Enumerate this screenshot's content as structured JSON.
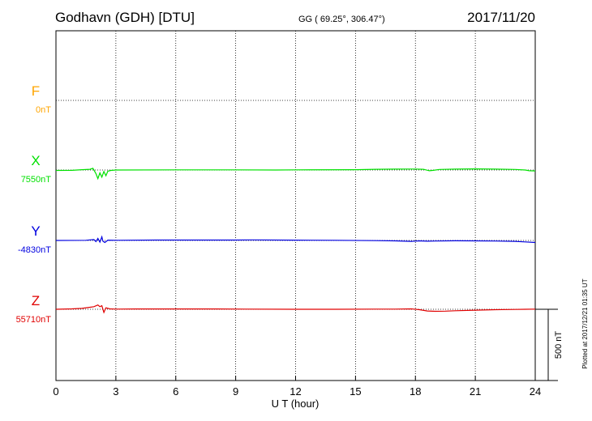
{
  "header": {
    "station": "Godhavn (GDH)  [DTU]",
    "coords": "GG ( 69.25°, 306.47°)",
    "date": "2017/11/20"
  },
  "side_note": "Plotted at 2017/12/21 01:35 UT",
  "scale_label": "500 nT",
  "chart_data": {
    "type": "line",
    "xlabel": "U T (hour)",
    "xlim": [
      0,
      24
    ],
    "xticks": [
      0,
      3,
      6,
      9,
      12,
      15,
      18,
      21,
      24
    ],
    "grid": true,
    "scale_bar_nT": 500,
    "series": [
      {
        "key": "F",
        "name": "F",
        "baseline_label": "0nT",
        "color": "#ffa500",
        "values": []
      },
      {
        "key": "X",
        "name": "X",
        "baseline_label": "7550nT",
        "color": "#00e000",
        "values": [
          [
            0,
            -3
          ],
          [
            0.8,
            -2
          ],
          [
            1.3,
            2
          ],
          [
            1.7,
            5
          ],
          [
            1.85,
            12
          ],
          [
            2.0,
            -25
          ],
          [
            2.1,
            -60
          ],
          [
            2.2,
            -20
          ],
          [
            2.3,
            -50
          ],
          [
            2.4,
            -10
          ],
          [
            2.5,
            -40
          ],
          [
            2.6,
            -8
          ],
          [
            2.75,
            -3
          ],
          [
            3.0,
            0
          ],
          [
            6,
            1
          ],
          [
            9,
            1
          ],
          [
            11,
            0
          ],
          [
            12,
            1
          ],
          [
            15,
            2
          ],
          [
            16,
            5
          ],
          [
            17,
            6
          ],
          [
            18,
            7
          ],
          [
            18.4,
            5
          ],
          [
            18.7,
            -5
          ],
          [
            18.9,
            -2
          ],
          [
            19.2,
            4
          ],
          [
            20,
            6
          ],
          [
            21,
            8
          ],
          [
            22,
            6
          ],
          [
            23,
            4
          ],
          [
            23.5,
            0
          ],
          [
            23.7,
            -5
          ],
          [
            24,
            -6
          ]
        ]
      },
      {
        "key": "Y",
        "name": "Y",
        "baseline_label": "-4830nT",
        "color": "#0000e0",
        "values": [
          [
            0,
            0
          ],
          [
            1.5,
            1
          ],
          [
            1.9,
            6
          ],
          [
            2.0,
            -8
          ],
          [
            2.1,
            14
          ],
          [
            2.2,
            -12
          ],
          [
            2.3,
            25
          ],
          [
            2.35,
            -5
          ],
          [
            2.45,
            -14
          ],
          [
            2.6,
            2
          ],
          [
            3.0,
            1
          ],
          [
            5,
            3
          ],
          [
            7,
            3
          ],
          [
            9,
            3
          ],
          [
            9.8,
            4
          ],
          [
            12,
            2
          ],
          [
            14,
            1
          ],
          [
            16,
            -1
          ],
          [
            17,
            -3
          ],
          [
            17.8,
            -6
          ],
          [
            18.2,
            -3
          ],
          [
            18.6,
            -5
          ],
          [
            19,
            -4
          ],
          [
            20,
            -2
          ],
          [
            21,
            -3
          ],
          [
            22,
            -4
          ],
          [
            23,
            -6
          ],
          [
            23.5,
            -10
          ],
          [
            24,
            -14
          ]
        ]
      },
      {
        "key": "Z",
        "name": "Z",
        "baseline_label": "55710nT",
        "color": "#e00000",
        "values": [
          [
            0,
            0
          ],
          [
            0.8,
            3
          ],
          [
            1.3,
            6
          ],
          [
            1.6,
            12
          ],
          [
            1.9,
            18
          ],
          [
            2.1,
            30
          ],
          [
            2.2,
            18
          ],
          [
            2.3,
            25
          ],
          [
            2.4,
            -22
          ],
          [
            2.5,
            10
          ],
          [
            2.7,
            3
          ],
          [
            3.0,
            1
          ],
          [
            4,
            2
          ],
          [
            5,
            2
          ],
          [
            6,
            2
          ],
          [
            8,
            2
          ],
          [
            9.5,
            1
          ],
          [
            12,
            0
          ],
          [
            14,
            0
          ],
          [
            16,
            1
          ],
          [
            17,
            1
          ],
          [
            17.8,
            3
          ],
          [
            18.2,
            -3
          ],
          [
            18.6,
            -12
          ],
          [
            19.0,
            -14
          ],
          [
            19.5,
            -13
          ],
          [
            20,
            -10
          ],
          [
            21,
            -6
          ],
          [
            22,
            -3
          ],
          [
            23,
            -1
          ],
          [
            23.5,
            0
          ],
          [
            24,
            1
          ]
        ]
      }
    ]
  }
}
